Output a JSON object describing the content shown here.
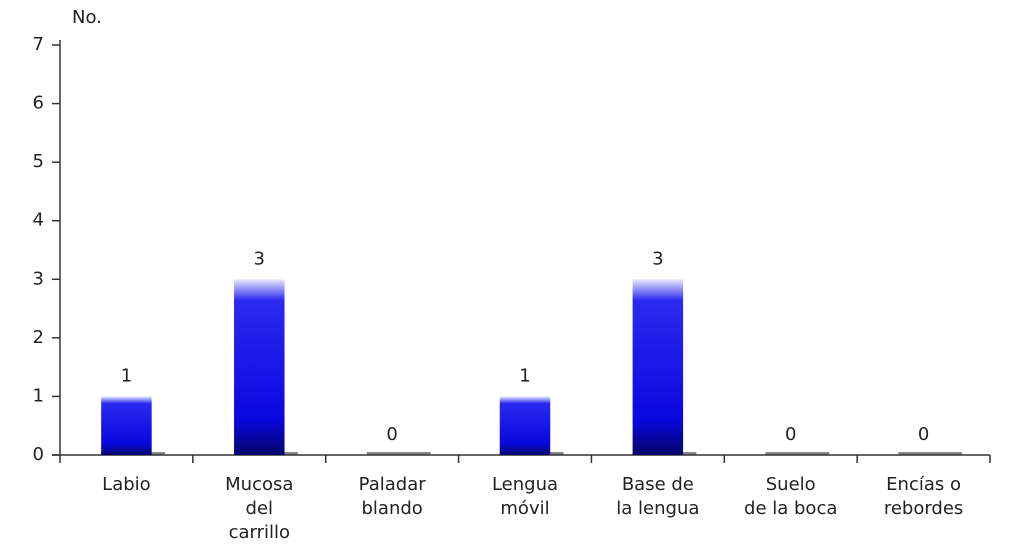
{
  "chart_data": {
    "type": "bar",
    "y_label": "No.",
    "categories": [
      [
        "Labio"
      ],
      [
        "Mucosa",
        "del",
        "carrillo"
      ],
      [
        "Paladar",
        "blando"
      ],
      [
        "Lengua",
        "móvil"
      ],
      [
        "Base de",
        "la lengua"
      ],
      [
        "Suelo",
        "de la boca"
      ],
      [
        "Encías o",
        "rebordes"
      ]
    ],
    "values": [
      1,
      3,
      0,
      1,
      3,
      0,
      0
    ],
    "color": "#0a0ae8",
    "ylim": [
      0,
      7
    ],
    "yticks": [
      0,
      1,
      2,
      3,
      4,
      5,
      6,
      7
    ],
    "grid": false
  }
}
